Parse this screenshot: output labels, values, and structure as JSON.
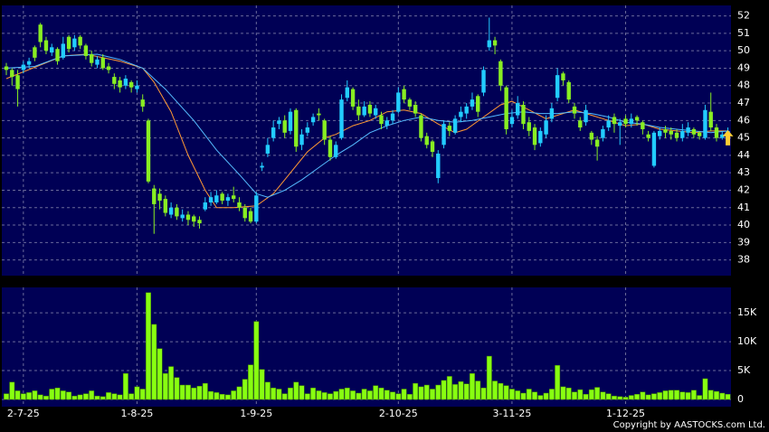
{
  "chart_data": {
    "type": "candlestick",
    "up_color": "#22ccff",
    "down_color": "#88ee22",
    "grid": true,
    "categories": [
      null,
      null,
      null,
      "2-7-25",
      null,
      null,
      null,
      null,
      null,
      null,
      null,
      null,
      null,
      null,
      null,
      null,
      null,
      null,
      null,
      null,
      null,
      null,
      null,
      "1-8-25",
      null,
      null,
      null,
      null,
      null,
      null,
      null,
      null,
      null,
      null,
      null,
      null,
      null,
      null,
      null,
      null,
      null,
      null,
      null,
      null,
      "1-9-25",
      null,
      null,
      null,
      null,
      null,
      null,
      null,
      null,
      null,
      null,
      null,
      null,
      null,
      null,
      null,
      null,
      null,
      null,
      null,
      null,
      null,
      null,
      null,
      null,
      "2-10-25",
      null,
      null,
      null,
      null,
      null,
      null,
      null,
      null,
      null,
      null,
      null,
      null,
      null,
      null,
      null,
      null,
      null,
      null,
      null,
      "3-11-25",
      null,
      null,
      null,
      null,
      null,
      null,
      null,
      null,
      null,
      null,
      null,
      null,
      null,
      null,
      null,
      null,
      null,
      null,
      null,
      "1-12-25",
      null,
      null,
      null,
      null,
      null,
      null,
      null,
      null,
      null,
      null,
      null,
      null,
      null,
      null,
      null,
      null,
      null,
      null
    ],
    "ohlc": [
      [
        49.1,
        49.3,
        48.6,
        48.9
      ],
      [
        48.9,
        49.0,
        48.0,
        48.5
      ],
      [
        48.6,
        48.9,
        46.8,
        47.8
      ],
      [
        48.9,
        49.4,
        48.7,
        49.2
      ],
      [
        49.2,
        49.6,
        49.0,
        49.4
      ],
      [
        50.2,
        50.3,
        49.4,
        49.6
      ],
      [
        51.5,
        51.6,
        50.2,
        50.5
      ],
      [
        50.6,
        50.8,
        49.8,
        50.0
      ],
      [
        49.9,
        50.4,
        49.7,
        50.2
      ],
      [
        50.1,
        50.2,
        49.2,
        49.4
      ],
      [
        49.6,
        50.8,
        49.5,
        50.4
      ],
      [
        50.8,
        50.9,
        49.9,
        50.1
      ],
      [
        50.2,
        50.9,
        50.0,
        50.7
      ],
      [
        50.8,
        50.9,
        50.1,
        50.3
      ],
      [
        50.3,
        50.4,
        49.5,
        49.7
      ],
      [
        49.8,
        50.0,
        49.1,
        49.3
      ],
      [
        49.2,
        49.7,
        49.0,
        49.5
      ],
      [
        49.6,
        49.8,
        48.9,
        49.0
      ],
      [
        49.1,
        49.3,
        48.7,
        48.9
      ],
      [
        48.5,
        48.7,
        47.8,
        48.1
      ],
      [
        48.3,
        48.5,
        47.6,
        47.9
      ],
      [
        48.0,
        48.6,
        47.8,
        48.4
      ],
      [
        48.2,
        48.3,
        47.6,
        47.9
      ],
      [
        47.8,
        48.3,
        47.6,
        48.0
      ],
      [
        47.2,
        47.5,
        46.5,
        46.8
      ],
      [
        46.0,
        46.1,
        42.4,
        42.5
      ],
      [
        42.1,
        42.3,
        39.5,
        41.2
      ],
      [
        41.8,
        42.1,
        40.9,
        41.4
      ],
      [
        41.5,
        41.7,
        40.5,
        40.7
      ],
      [
        40.6,
        41.3,
        40.4,
        41.0
      ],
      [
        41.0,
        41.2,
        40.3,
        40.5
      ],
      [
        40.4,
        40.9,
        40.2,
        40.6
      ],
      [
        40.6,
        40.8,
        40.0,
        40.3
      ],
      [
        40.5,
        40.6,
        39.9,
        40.2
      ],
      [
        40.3,
        40.5,
        39.8,
        40.1
      ],
      [
        40.9,
        41.6,
        40.8,
        41.3
      ],
      [
        41.3,
        41.9,
        41.1,
        41.6
      ],
      [
        41.3,
        42.0,
        41.2,
        41.7
      ],
      [
        41.8,
        41.9,
        41.2,
        41.4
      ],
      [
        41.4,
        41.8,
        41.1,
        41.6
      ],
      [
        41.7,
        42.2,
        41.3,
        41.5
      ],
      [
        41.3,
        41.6,
        40.8,
        41.0
      ],
      [
        41.0,
        41.2,
        40.2,
        40.4
      ],
      [
        40.8,
        41.0,
        40.1,
        40.2
      ],
      [
        40.2,
        41.9,
        40.1,
        41.7
      ],
      [
        43.3,
        43.6,
        43.1,
        43.4
      ],
      [
        44.1,
        45.0,
        43.9,
        44.6
      ],
      [
        45.0,
        46.0,
        44.8,
        45.6
      ],
      [
        45.8,
        46.2,
        45.5,
        46.0
      ],
      [
        46.0,
        46.3,
        45.0,
        45.3
      ],
      [
        45.4,
        46.7,
        45.2,
        46.5
      ],
      [
        46.6,
        46.7,
        44.2,
        44.5
      ],
      [
        44.6,
        45.5,
        44.3,
        45.2
      ],
      [
        45.3,
        45.9,
        45.1,
        45.6
      ],
      [
        45.9,
        46.4,
        45.7,
        46.2
      ],
      [
        46.4,
        46.7,
        46.0,
        46.3
      ],
      [
        46.0,
        46.1,
        44.6,
        44.9
      ],
      [
        44.9,
        45.1,
        43.7,
        43.9
      ],
      [
        43.9,
        44.8,
        43.8,
        44.6
      ],
      [
        45.0,
        47.5,
        44.9,
        47.2
      ],
      [
        47.3,
        48.3,
        47.1,
        47.9
      ],
      [
        47.8,
        47.9,
        46.6,
        46.8
      ],
      [
        46.8,
        47.2,
        46.0,
        46.3
      ],
      [
        46.3,
        47.1,
        46.2,
        46.8
      ],
      [
        46.9,
        47.1,
        46.2,
        46.4
      ],
      [
        46.3,
        46.9,
        46.1,
        46.7
      ],
      [
        46.3,
        46.5,
        45.5,
        45.8
      ],
      [
        45.7,
        46.2,
        45.5,
        46.0
      ],
      [
        46.0,
        46.6,
        45.8,
        46.4
      ],
      [
        46.5,
        47.9,
        46.4,
        47.6
      ],
      [
        47.8,
        48.0,
        47.0,
        47.2
      ],
      [
        47.2,
        47.3,
        46.6,
        46.8
      ],
      [
        46.9,
        47.1,
        46.2,
        46.4
      ],
      [
        46.3,
        46.4,
        44.8,
        45.0
      ],
      [
        45.1,
        45.3,
        44.4,
        44.6
      ],
      [
        44.8,
        44.9,
        43.9,
        44.2
      ],
      [
        42.7,
        44.3,
        42.4,
        44.1
      ],
      [
        44.6,
        46.0,
        44.4,
        45.8
      ],
      [
        45.7,
        45.9,
        45.1,
        45.4
      ],
      [
        45.3,
        46.3,
        45.2,
        46.1
      ],
      [
        46.2,
        46.8,
        45.9,
        46.5
      ],
      [
        46.4,
        47.0,
        46.1,
        46.8
      ],
      [
        46.8,
        47.6,
        46.6,
        47.2
      ],
      [
        47.4,
        47.5,
        46.2,
        46.5
      ],
      [
        47.6,
        49.1,
        47.4,
        48.9
      ],
      [
        50.2,
        51.9,
        50.0,
        50.6
      ],
      [
        50.6,
        50.8,
        49.8,
        50.3
      ],
      [
        49.4,
        49.5,
        47.7,
        48.0
      ],
      [
        47.9,
        48.0,
        45.2,
        45.5
      ],
      [
        45.8,
        46.6,
        45.6,
        46.2
      ],
      [
        46.3,
        47.4,
        46.1,
        47.0
      ],
      [
        46.9,
        47.1,
        45.5,
        45.8
      ],
      [
        45.9,
        46.2,
        45.1,
        45.4
      ],
      [
        45.6,
        45.8,
        44.3,
        44.6
      ],
      [
        44.7,
        45.6,
        44.5,
        45.4
      ],
      [
        45.2,
        46.3,
        45.0,
        46.0
      ],
      [
        46.1,
        47.0,
        45.9,
        46.7
      ],
      [
        47.3,
        49.0,
        47.1,
        48.6
      ],
      [
        48.7,
        48.8,
        48.0,
        48.3
      ],
      [
        48.2,
        48.3,
        47.0,
        47.2
      ],
      [
        46.8,
        47.0,
        46.1,
        46.4
      ],
      [
        46.0,
        46.2,
        45.4,
        45.6
      ],
      [
        45.9,
        46.9,
        45.7,
        46.6
      ],
      [
        45.3,
        45.4,
        44.6,
        44.9
      ],
      [
        44.9,
        45.1,
        43.7,
        44.5
      ],
      [
        45.0,
        45.7,
        44.8,
        45.5
      ],
      [
        45.6,
        46.3,
        45.4,
        46.0
      ],
      [
        46.2,
        46.4,
        45.3,
        45.8
      ],
      [
        45.7,
        46.1,
        44.6,
        45.9
      ],
      [
        46.1,
        46.3,
        45.6,
        45.8
      ],
      [
        45.8,
        46.4,
        45.6,
        46.1
      ],
      [
        46.2,
        46.3,
        45.7,
        46.0
      ],
      [
        45.9,
        46.0,
        45.2,
        45.5
      ],
      [
        45.2,
        45.4,
        44.8,
        45.0
      ],
      [
        43.4,
        45.4,
        43.3,
        45.3
      ],
      [
        45.1,
        45.6,
        44.9,
        45.4
      ],
      [
        45.5,
        45.7,
        45.0,
        45.3
      ],
      [
        45.4,
        45.6,
        44.9,
        45.2
      ],
      [
        45.3,
        45.5,
        44.8,
        45.0
      ],
      [
        45.0,
        45.8,
        44.8,
        45.4
      ],
      [
        45.3,
        45.9,
        45.1,
        45.6
      ],
      [
        45.5,
        45.6,
        45.0,
        45.2
      ],
      [
        45.3,
        45.4,
        44.9,
        45.1
      ],
      [
        45.0,
        46.9,
        44.9,
        46.6
      ],
      [
        46.5,
        47.6,
        45.4,
        45.6
      ],
      [
        45.6,
        45.8,
        44.8,
        45.0
      ],
      [
        45.0,
        45.4,
        44.9,
        45.2
      ],
      [
        45.0,
        45.6,
        44.9,
        45.4
      ]
    ],
    "lines": [
      {
        "color": "#ff9933",
        "x": [
          0,
          10,
          14,
          20,
          24,
          26,
          29,
          32,
          35,
          37,
          40,
          44,
          47,
          50,
          53,
          56,
          58,
          61,
          64,
          67,
          70,
          73,
          76,
          79,
          81,
          84,
          87,
          89,
          92,
          95,
          98,
          100,
          103,
          106,
          109,
          112,
          115,
          118,
          121,
          124,
          127
        ],
        "values": [
          48.4,
          49.7,
          49.8,
          49.4,
          49.0,
          48.2,
          46.5,
          44.0,
          42.0,
          41.0,
          41.0,
          41.1,
          41.8,
          43.0,
          44.2,
          45.0,
          45.2,
          45.7,
          46.0,
          46.5,
          46.6,
          46.4,
          45.8,
          45.3,
          45.5,
          46.2,
          46.9,
          47.1,
          46.6,
          46.1,
          46.4,
          46.6,
          46.3,
          46.0,
          45.7,
          45.8,
          45.5,
          45.4,
          45.3,
          45.4,
          45.4
        ]
      },
      {
        "color": "#55bbff",
        "x": [
          0,
          5,
          10,
          16,
          20,
          24,
          28,
          33,
          37,
          41,
          44,
          46,
          49,
          52,
          55,
          58,
          61,
          64,
          67,
          70,
          73,
          76,
          79,
          82,
          85,
          88,
          91,
          94,
          97,
          100,
          103,
          106,
          109,
          112,
          115,
          118,
          121,
          124,
          127
        ],
        "values": [
          49.0,
          49.1,
          49.7,
          49.8,
          49.5,
          49.0,
          47.8,
          46.0,
          44.3,
          42.9,
          41.8,
          41.6,
          42.0,
          42.6,
          43.3,
          44.0,
          44.6,
          45.3,
          45.7,
          46.0,
          46.2,
          46.0,
          45.9,
          46.0,
          46.2,
          46.4,
          46.5,
          46.4,
          46.4,
          46.5,
          46.4,
          46.2,
          45.9,
          45.8,
          45.6,
          45.5,
          45.4,
          45.3,
          45.4
        ]
      }
    ],
    "ylim": [
      37.1,
      52.6
    ],
    "yticks": [
      38,
      39,
      40,
      41,
      42,
      43,
      44,
      45,
      46,
      47,
      48,
      49,
      50,
      51,
      52
    ],
    "volume": {
      "type": "bar",
      "color": "#88ff11",
      "values": [
        1000,
        3000,
        1500,
        1000,
        1200,
        1500,
        800,
        600,
        1800,
        2000,
        1500,
        1300,
        600,
        800,
        1000,
        1500,
        600,
        500,
        1200,
        1000,
        800,
        4500,
        1000,
        2200,
        1800,
        18500,
        13000,
        8800,
        4500,
        5700,
        3800,
        2500,
        2500,
        2000,
        2300,
        2800,
        1400,
        1200,
        900,
        800,
        1500,
        2200,
        3500,
        6000,
        13500,
        5200,
        3000,
        2000,
        1800,
        1000,
        2000,
        3000,
        2400,
        1000,
        2000,
        1500,
        1200,
        1000,
        1400,
        1800,
        2000,
        1500,
        1100,
        1800,
        1500,
        2400,
        2000,
        1600,
        1300,
        1000,
        1800,
        900,
        2800,
        2200,
        2500,
        1800,
        2500,
        3300,
        4000,
        2600,
        3100,
        2700,
        4500,
        3200,
        2000,
        7500,
        3200,
        2800,
        2400,
        1800,
        1500,
        1100,
        1800,
        1300,
        700,
        1100,
        1800,
        5900,
        2200,
        2000,
        1300,
        1700,
        900,
        1700,
        2100,
        1300,
        1000,
        600,
        500,
        400,
        700,
        900,
        1300,
        800,
        1000,
        1200,
        1500,
        1600,
        1600,
        1300,
        1200,
        1600,
        700,
        3600,
        1600,
        1400,
        1100,
        900
      ],
      "ylim": [
        -1250,
        19400
      ],
      "yticks": [
        0,
        {
          "value": 5000,
          "label": "5K"
        },
        {
          "value": 10000,
          "label": "10K"
        },
        {
          "value": 15000,
          "label": "15K"
        }
      ]
    }
  },
  "footer": "Copyright by AASTOCKS.com Ltd."
}
